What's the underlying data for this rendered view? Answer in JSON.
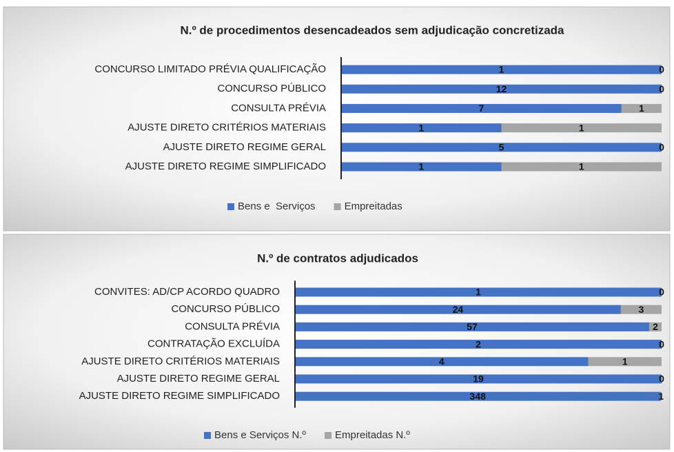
{
  "chart_data": [
    {
      "type": "bar",
      "orientation": "horizontal",
      "stacking": "percent",
      "title": "N.º de procedimentos desencadeados sem adjudicação concretizada",
      "categories": [
        "CONCURSO LIMITADO PRÉVIA QUALIFICAÇÃO",
        "CONCURSO PÚBLICO",
        "CONSULTA PRÉVIA",
        "AJUSTE DIRETO CRITÉRIOS MATERIAIS",
        "AJUSTE DIRETO REGIME GERAL",
        "AJUSTE DIRETO REGIME SIMPLIFICADO"
      ],
      "series": [
        {
          "name": "Bens e  Serviços",
          "color": "#4472c4",
          "values": [
            1,
            12,
            7,
            1,
            5,
            1
          ]
        },
        {
          "name": "Empreitadas",
          "color": "#a5a5a5",
          "values": [
            0,
            0,
            1,
            1,
            0,
            1
          ]
        }
      ],
      "legend": "bottom"
    },
    {
      "type": "bar",
      "orientation": "horizontal",
      "stacking": "percent",
      "title": "N.º de contratos adjudicados",
      "categories": [
        "CONVITES: AD/CP ACORDO QUADRO",
        "CONCURSO PÚBLICO",
        "CONSULTA PRÉVIA",
        "CONTRATAÇÃO EXCLUÍDA",
        "AJUSTE DIRETO CRITÉRIOS MATERIAIS",
        "AJUSTE DIRETO REGIME GERAL",
        "AJUSTE DIRETO REGIME SIMPLIFICADO"
      ],
      "series": [
        {
          "name": "Bens e Serviços N.º",
          "color": "#4472c4",
          "values": [
            1,
            24,
            57,
            2,
            4,
            19,
            348
          ]
        },
        {
          "name": "Empreitadas N.º",
          "color": "#a5a5a5",
          "values": [
            0,
            3,
            2,
            0,
            1,
            0,
            1
          ]
        }
      ],
      "legend": "bottom"
    }
  ]
}
